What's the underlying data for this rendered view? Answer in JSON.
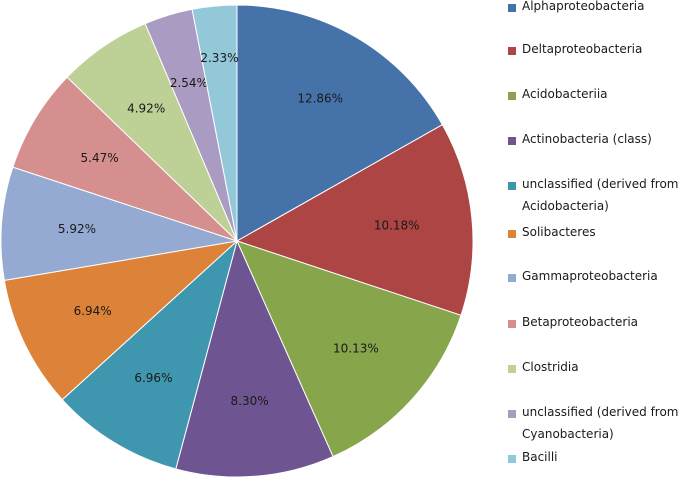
{
  "chart_data": {
    "type": "pie",
    "categories": [
      "Alphaproteobacteria",
      "Deltaproteobacteria",
      "Acidobacteriia",
      "Actinobacteria (class)",
      "unclassified (derived from Acidobacteria)",
      "Solibacteres",
      "Gammaproteobacteria",
      "Betaproteobacteria",
      "Clostridia",
      "unclassified (derived from Cyanobacteria)",
      "Bacilli"
    ],
    "values": [
      12.86,
      10.18,
      10.13,
      8.3,
      6.96,
      6.94,
      5.92,
      5.47,
      4.92,
      2.54,
      2.33
    ],
    "data_labels": [
      "12.86%",
      "10.18%",
      "10.13%",
      "8.30%",
      "6.96%",
      "6.94%",
      "5.92%",
      "5.47%",
      "4.92%",
      "2.54%",
      "2.33%"
    ],
    "colors": [
      "#4672AA",
      "#AC4543",
      "#87A54B",
      "#6E5591",
      "#3F97AF",
      "#DD8339",
      "#94AAD2",
      "#D58F8E",
      "#BDD196",
      "#AA9BC2",
      "#93C8D9"
    ],
    "legend_position": "right",
    "start_angle": "12 o'clock",
    "direction": "clockwise"
  }
}
